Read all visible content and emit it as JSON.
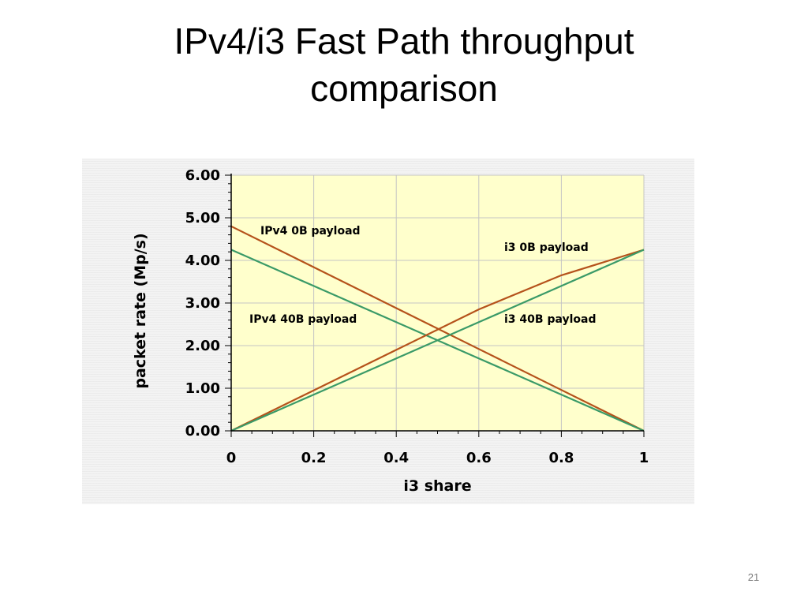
{
  "slide": {
    "title": "IPv4/i3 Fast Path throughput comparison",
    "number": "21"
  },
  "chart_data": {
    "type": "line",
    "title": "",
    "xlabel": "i3 share",
    "ylabel": "packet rate (Mp/s)",
    "xlim": [
      0,
      1
    ],
    "ylim": [
      0,
      6
    ],
    "grid": true,
    "x_tick_labels": [
      "0",
      "0.2",
      "0.4",
      "0.6",
      "0.8",
      "1"
    ],
    "y_tick_labels": [
      "0.00",
      "1.00",
      "2.00",
      "3.00",
      "4.00",
      "5.00",
      "6.00"
    ],
    "plot_background": "#ffffcc",
    "series": [
      {
        "name": "IPv4 0B payload",
        "color": "#b5521b",
        "x": [
          0,
          0.2,
          0.4,
          0.6,
          0.8,
          1
        ],
        "y": [
          4.8,
          3.84,
          2.88,
          1.92,
          0.96,
          0
        ]
      },
      {
        "name": "IPv4 40B payload",
        "color": "#3a9a68",
        "x": [
          0,
          0.2,
          0.4,
          0.6,
          0.8,
          1
        ],
        "y": [
          4.25,
          3.4,
          2.55,
          1.7,
          0.85,
          0
        ]
      },
      {
        "name": "i3 0B payload",
        "color": "#b5521b",
        "x": [
          0,
          0.2,
          0.4,
          0.6,
          0.8,
          1
        ],
        "y": [
          0,
          0.95,
          1.9,
          2.85,
          3.65,
          4.25
        ]
      },
      {
        "name": "i3 40B payload",
        "color": "#3a9a68",
        "x": [
          0,
          0.2,
          0.4,
          0.6,
          0.8,
          1
        ],
        "y": [
          0,
          0.85,
          1.7,
          2.55,
          3.4,
          4.25
        ]
      }
    ]
  }
}
